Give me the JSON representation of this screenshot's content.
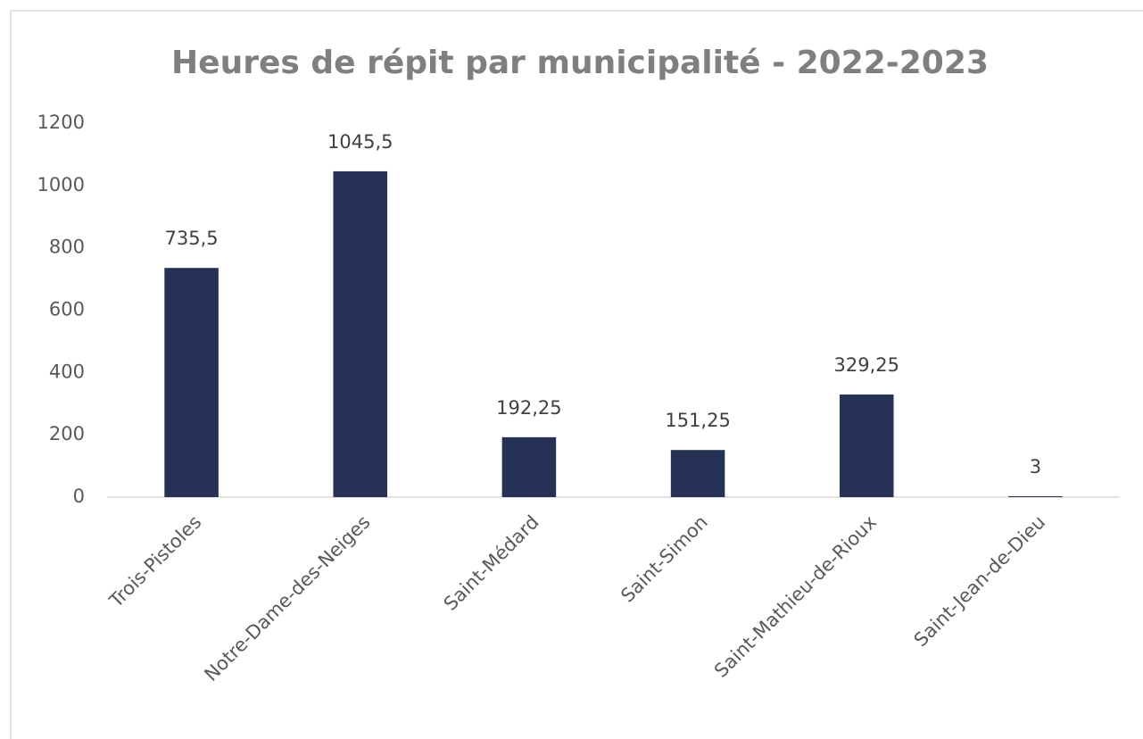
{
  "chart_data": {
    "type": "bar",
    "title": "Heures de répit par municipalité - 2022-2023",
    "categories": [
      "Trois-Pistoles",
      "Notre-Dame-des-Neiges",
      "Saint-Médard",
      "Saint-Simon",
      "Saint-Mathieu-de-Rioux",
      "Saint-Jean-de-Dieu"
    ],
    "values": [
      735.5,
      1045.5,
      192.25,
      151.25,
      329.25,
      3
    ],
    "value_labels": [
      "735,5",
      "1045,5",
      "192,25",
      "151,25",
      "329,25",
      "3"
    ],
    "color": "#263255",
    "ylim": [
      0,
      1200
    ],
    "yticks": [
      0,
      200,
      400,
      600,
      800,
      1000,
      1200
    ],
    "grid": false
  }
}
